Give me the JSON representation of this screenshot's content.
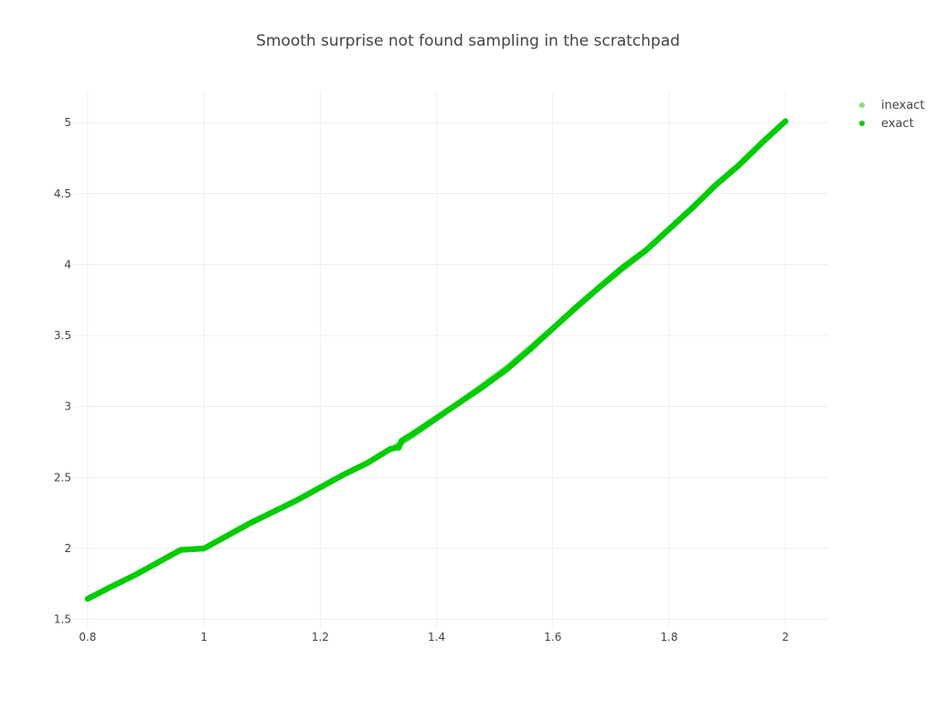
{
  "chart_data": {
    "type": "scatter",
    "title": "Smooth surprise not found sampling in the scratchpad",
    "xlabel": "",
    "ylabel": "",
    "xlim": [
      0.775,
      2.075
    ],
    "ylim": [
      1.44,
      5.22
    ],
    "x_ticks": [
      0.8,
      1,
      1.2,
      1.4,
      1.6,
      1.8,
      2
    ],
    "x_tick_labels": [
      "0.8",
      "1",
      "1.2",
      "1.4",
      "1.6",
      "1.8",
      "2"
    ],
    "y_ticks": [
      1.5,
      2,
      2.5,
      3,
      3.5,
      4,
      4.5,
      5
    ],
    "y_tick_labels": [
      "1.5",
      "2",
      "2.5",
      "3",
      "3.5",
      "4",
      "4.5",
      "5"
    ],
    "grid": true,
    "legend_position": "top-right",
    "series": [
      {
        "name": "inexact",
        "color": "#7ee07e",
        "x": [
          1.33,
          1.36,
          1.44,
          1.52,
          1.6,
          1.68,
          1.76,
          1.8,
          1.84,
          1.88,
          1.92,
          1.96
        ],
        "y": [
          2.72,
          2.8,
          3.03,
          3.27,
          3.55,
          3.84,
          4.1,
          4.25,
          4.4,
          4.56,
          4.7,
          4.86
        ]
      },
      {
        "name": "exact",
        "color": "#00cc00",
        "x": [
          0.8,
          0.84,
          0.88,
          0.92,
          0.96,
          1.0,
          1.04,
          1.08,
          1.12,
          1.16,
          1.2,
          1.24,
          1.28,
          1.3,
          1.32,
          1.33,
          1.335,
          1.34,
          1.36,
          1.4,
          1.44,
          1.48,
          1.52,
          1.56,
          1.6,
          1.64,
          1.68,
          1.72,
          1.76,
          1.8,
          1.84,
          1.88,
          1.92,
          1.96,
          2.0
        ],
        "y": [
          1.645,
          1.73,
          1.81,
          1.9,
          1.99,
          2.0,
          2.09,
          2.18,
          2.26,
          2.34,
          2.43,
          2.52,
          2.6,
          2.65,
          2.7,
          2.71,
          2.71,
          2.76,
          2.81,
          2.92,
          3.03,
          3.14,
          3.26,
          3.4,
          3.55,
          3.7,
          3.84,
          3.98,
          4.1,
          4.25,
          4.4,
          4.56,
          4.7,
          4.86,
          5.01
        ]
      }
    ]
  }
}
